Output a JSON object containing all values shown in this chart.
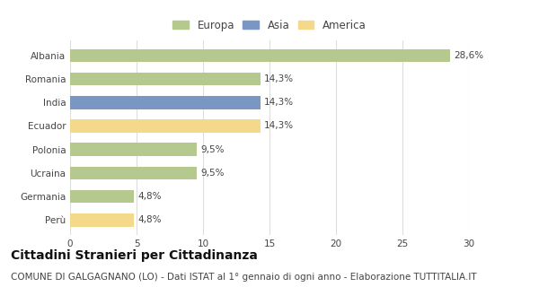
{
  "categories": [
    "Albania",
    "Romania",
    "India",
    "Ecuador",
    "Polonia",
    "Ucraina",
    "Germania",
    "Perù"
  ],
  "values": [
    28.6,
    14.3,
    14.3,
    14.3,
    9.5,
    9.5,
    4.8,
    4.8
  ],
  "labels": [
    "28,6%",
    "14,3%",
    "14,3%",
    "14,3%",
    "9,5%",
    "9,5%",
    "4,8%",
    "4,8%"
  ],
  "colors": [
    "#b5c98e",
    "#b5c98e",
    "#7a96c2",
    "#f5d98b",
    "#b5c98e",
    "#b5c98e",
    "#b5c98e",
    "#f5d98b"
  ],
  "legend_labels": [
    "Europa",
    "Asia",
    "America"
  ],
  "legend_colors": [
    "#b5c98e",
    "#7a96c2",
    "#f5d98b"
  ],
  "title": "Cittadini Stranieri per Cittadinanza",
  "subtitle": "COMUNE DI GALGAGNANO (LO) - Dati ISTAT al 1° gennaio di ogni anno - Elaborazione TUTTITALIA.IT",
  "xlim": [
    0,
    30
  ],
  "xticks": [
    0,
    5,
    10,
    15,
    20,
    25,
    30
  ],
  "background_color": "#ffffff",
  "grid_color": "#dddddd",
  "bar_height": 0.55,
  "title_fontsize": 10,
  "subtitle_fontsize": 7.5,
  "label_fontsize": 7.5,
  "tick_fontsize": 7.5,
  "legend_fontsize": 8.5
}
